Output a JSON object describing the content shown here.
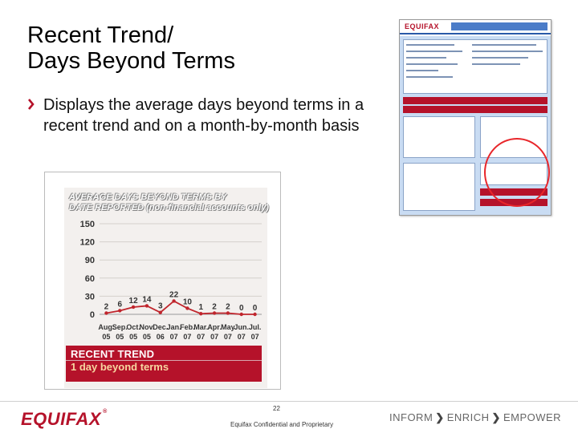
{
  "slide": {
    "title_line1": "Recent Trend/",
    "title_line2": "Days Beyond Terms",
    "bullet": "Displays the average days beyond terms in a recent trend and on a month-by-month basis"
  },
  "chart": {
    "title_line1": "AVERAGE DAYS BEYOND TERMS BY",
    "title_line2": "DATE REPORTED (non-financial accounts only)",
    "trend_title": "RECENT TREND",
    "trend_value": "1 day beyond terms"
  },
  "chart_data": {
    "type": "line",
    "categories": [
      "Aug 05",
      "Sep 05",
      "Oct 05",
      "Nov 05",
      "Dec 06",
      "Jan 07",
      "Feb 07",
      "Mar 07",
      "Apr 07",
      "May 07",
      "Jun 07",
      "Jul 07"
    ],
    "x_top_labels": [
      "Aug.",
      "Sep.",
      "Oct.",
      "Nov.",
      "Dec.",
      "Jan.",
      "Feb.",
      "Mar.",
      "Apr.",
      "May",
      "Jun.",
      "Jul."
    ],
    "x_bottom_labels": [
      "05",
      "05",
      "05",
      "05",
      "06",
      "07",
      "07",
      "07",
      "07",
      "07",
      "07",
      "07"
    ],
    "values": [
      2,
      6,
      12,
      14,
      3,
      22,
      10,
      1,
      2,
      2,
      0,
      0
    ],
    "value_labels": [
      "2",
      "6",
      "12",
      "14",
      "3",
      "22",
      "10",
      "1",
      "2",
      "2",
      "0",
      "0"
    ],
    "yticks": [
      0,
      30,
      60,
      90,
      120,
      150
    ],
    "ylim": [
      0,
      150
    ],
    "line_color": "#c0252c",
    "grid": "horizontal"
  },
  "footer": {
    "logo": "EQUIFAX",
    "logo_mark": "®",
    "page_number": "22",
    "confidential": "Equifax Confidential and Proprietary",
    "tag1": "INFORM",
    "tag2": "ENRICH",
    "tag3": "EMPOWER",
    "arrow": "❯"
  },
  "thumbnail": {
    "logo": "EQUIFAX",
    "highlight_color": "#e8262a"
  },
  "colors": {
    "brand_red": "#b5122a",
    "thumb_blue": "#c9dcf3"
  }
}
